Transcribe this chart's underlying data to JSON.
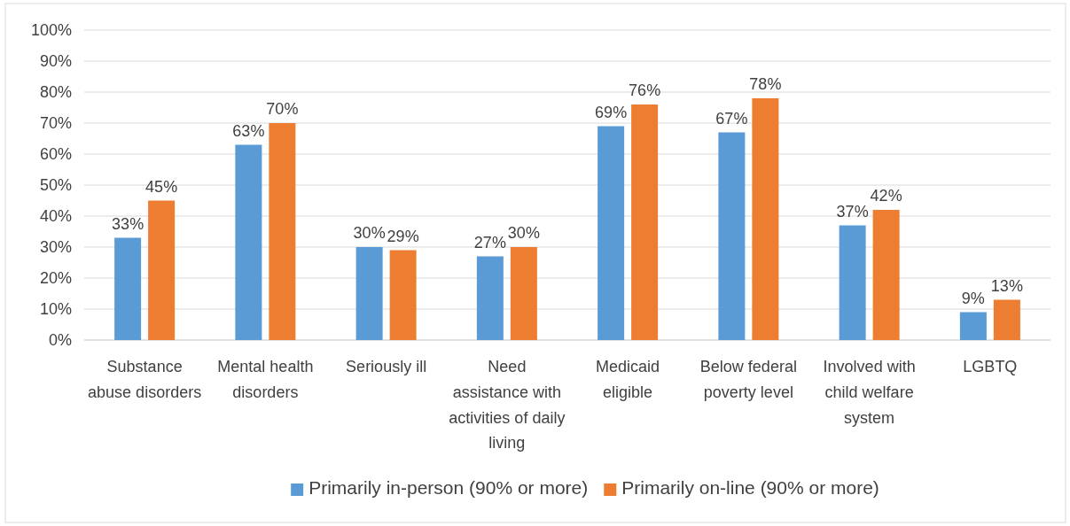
{
  "chart_data": {
    "type": "bar",
    "categories": [
      "Substance abuse disorders",
      "Mental health disorders",
      "Seriously ill",
      "Need assistance with activities of daily living",
      "Medicaid eligible",
      "Below federal poverty level",
      "Involved with child welfare system",
      "LGBTQ"
    ],
    "series": [
      {
        "name": "Primarily in-person (90% or more)",
        "color": "#5b9bd5",
        "values": [
          33,
          63,
          30,
          27,
          69,
          67,
          37,
          9
        ],
        "value_labels": [
          "33%",
          "63%",
          "30%",
          "27%",
          "69%",
          "67%",
          "37%",
          "9%"
        ]
      },
      {
        "name": "Primarily on-line (90% or more)",
        "color": "#ed7d31",
        "values": [
          45,
          70,
          29,
          30,
          76,
          78,
          42,
          13
        ],
        "value_labels": [
          "45%",
          "70%",
          "29%",
          "30%",
          "76%",
          "78%",
          "42%",
          "13%"
        ]
      }
    ],
    "ylim": [
      0,
      100
    ],
    "yticks": [
      {
        "value": 0,
        "label": "0%"
      },
      {
        "value": 10,
        "label": "10%"
      },
      {
        "value": 20,
        "label": "20%"
      },
      {
        "value": 30,
        "label": "30%"
      },
      {
        "value": 40,
        "label": "40%"
      },
      {
        "value": 50,
        "label": "50%"
      },
      {
        "value": 60,
        "label": "60%"
      },
      {
        "value": 70,
        "label": "70%"
      },
      {
        "value": 80,
        "label": "80%"
      },
      {
        "value": 90,
        "label": "90%"
      },
      {
        "value": 100,
        "label": "100%"
      }
    ],
    "grid": "y",
    "legend": "bottom"
  }
}
